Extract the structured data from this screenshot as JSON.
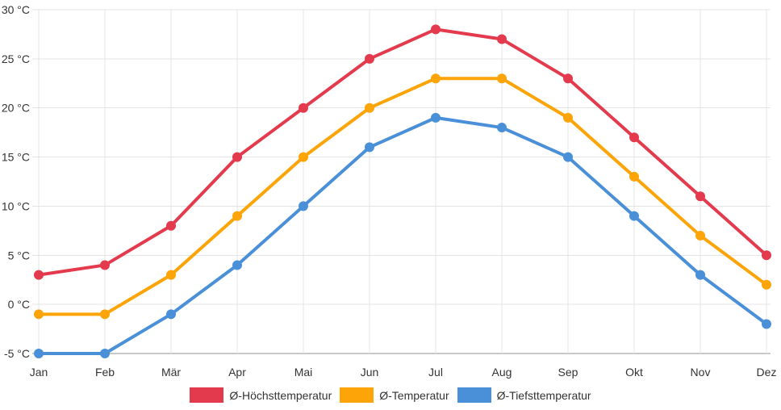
{
  "chart_data": {
    "type": "line",
    "title": "",
    "xlabel": "",
    "ylabel": "",
    "unit": "°C",
    "categories": [
      "Jan",
      "Feb",
      "Mär",
      "Apr",
      "Mai",
      "Jun",
      "Jul",
      "Aug",
      "Sep",
      "Okt",
      "Nov",
      "Dez"
    ],
    "series": [
      {
        "name": "Ø-Höchsttemperatur",
        "color": "#e33a4d",
        "values": [
          3,
          4,
          8,
          15,
          20,
          25,
          28,
          27,
          23,
          17,
          11,
          5
        ]
      },
      {
        "name": "Ø-Temperatur",
        "color": "#fca408",
        "values": [
          -1,
          -1,
          3,
          9,
          15,
          20,
          23,
          23,
          19,
          13,
          7,
          2
        ]
      },
      {
        "name": "Ø-Tiefsttemperatur",
        "color": "#4a90d9",
        "values": [
          -5,
          -5,
          -1,
          4,
          10,
          16,
          19,
          18,
          15,
          9,
          3,
          -2
        ]
      }
    ],
    "y_ticks": [
      "30 °C",
      "25 °C",
      "20 °C",
      "15 °C",
      "10 °C",
      "5 °C",
      "0 °C",
      "-5 °C"
    ],
    "y_tick_values": [
      30,
      25,
      20,
      15,
      10,
      5,
      0,
      -5
    ],
    "ylim": [
      -5,
      30
    ],
    "grid": true,
    "legend_position": "bottom"
  },
  "colors": {
    "background": "#ffffff",
    "grid": "#e4e4e4",
    "axis": "#c9c9c9",
    "text": "#333333"
  }
}
